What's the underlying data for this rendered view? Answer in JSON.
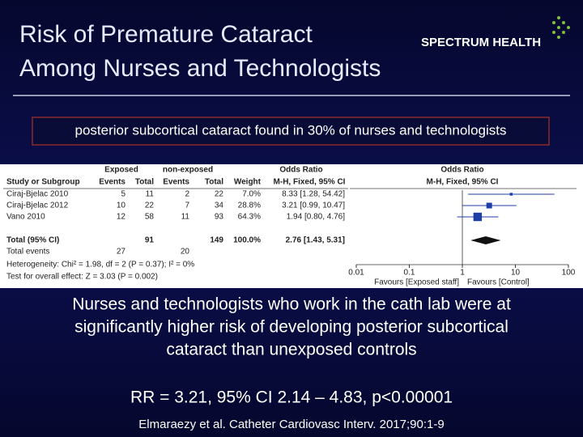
{
  "title": [
    "Risk of Premature Cataract",
    "Among Nurses and Technologists"
  ],
  "logo": "SPECTRUM HEALTH",
  "banner": "posterior subcortical cataract found in 30% of nurses and technologists",
  "forest": {
    "headers": {
      "exposed": "Exposed",
      "nonexposed": "non-exposed",
      "or_left": "Odds Ratio",
      "or_right": "Odds Ratio",
      "study": "Study or Subgroup",
      "events_exp": "Events",
      "total_exp": "Total",
      "events_ctl": "Events",
      "total_ctl": "Total",
      "weight": "Weight",
      "method_left": "M-H, Fixed, 95% CI",
      "method_right": "M-H, Fixed, 95% CI"
    },
    "rows": [
      {
        "study": "Ciraj-Bjelac 2010",
        "events_exp": 5,
        "total_exp": 11,
        "events_ctl": 2,
        "total_ctl": 22,
        "weight": 7,
        "weight_label": "7.0%",
        "or": 8.33,
        "lo": 1.28,
        "hi": 54.42,
        "or_label": "8.33 [1.28, 54.42]"
      },
      {
        "study": "Ciraj-Bjelac 2012",
        "events_exp": 10,
        "total_exp": 22,
        "events_ctl": 7,
        "total_ctl": 34,
        "weight": 28.8,
        "weight_label": "28.8%",
        "or": 3.21,
        "lo": 0.99,
        "hi": 10.47,
        "or_label": "3.21 [0.99, 10.47]"
      },
      {
        "study": "Vano 2010",
        "events_exp": 12,
        "total_exp": 58,
        "events_ctl": 11,
        "total_ctl": 93,
        "weight": 64.3,
        "weight_label": "64.3%",
        "or": 1.94,
        "lo": 0.8,
        "hi": 4.76,
        "or_label": "1.94 [0.80, 4.76]"
      }
    ],
    "total": {
      "label": "Total (95% CI)",
      "total_exp": 91,
      "total_ctl": 149,
      "weight_label": "100.0%",
      "or": 2.76,
      "lo": 1.43,
      "hi": 5.31,
      "or_label": "2.76 [1.43, 5.31]"
    },
    "total_events": {
      "label": "Total events",
      "events_exp": 27,
      "events_ctl": 20
    },
    "heterogeneity": "Heterogeneity: Chi² = 1.98, df = 2 (P = 0.37); I² = 0%",
    "overall": "Test for overall effect: Z = 3.03 (P = 0.002)",
    "xlim": [
      0.01,
      100
    ],
    "xticks": [
      0.01,
      0.1,
      1,
      10,
      100
    ],
    "log_scale": true,
    "favours_left": "Favours [Exposed staff]",
    "favours_right": "Favours [Control]",
    "marker_color": "#1f3fa8"
  },
  "body": [
    "Nurses and technologists who work in the cath lab were at",
    "significantly higher risk of developing posterior subcortical",
    "cataract than unexposed controls"
  ],
  "result": "RR = 3.21, 95% CI 2.14 – 4.83, p<0.00001",
  "citation": "Elmaraezy et al. Catheter Cardiovasc Interv. 2017;90:1-9"
}
